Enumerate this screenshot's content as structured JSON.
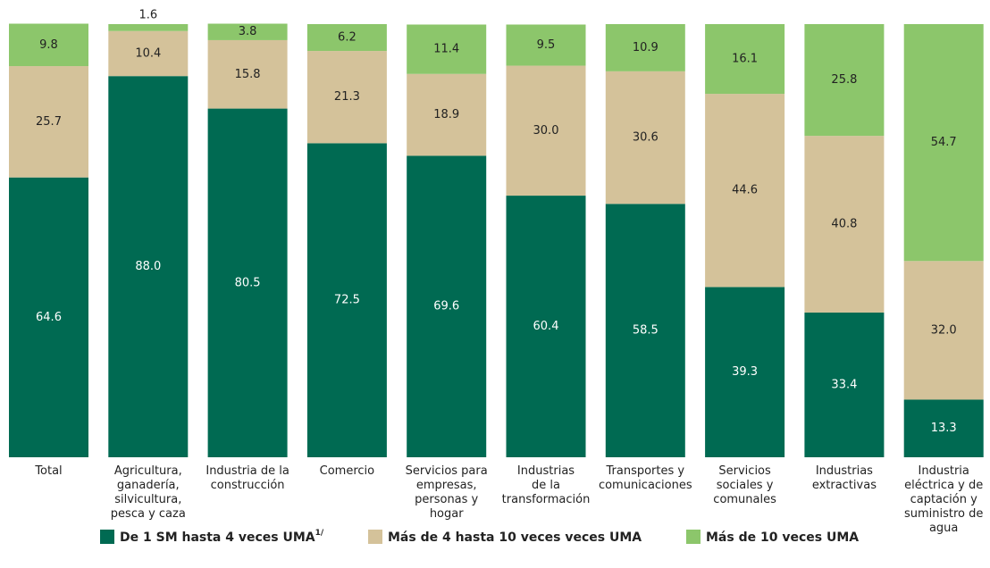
{
  "chart_data": {
    "type": "stacked_bar",
    "categories": [
      "Total",
      "Agricultura,\nganadería,\nsilvicultura,\npesca y caza",
      "Industria de la\nconstrucción",
      "Comercio",
      "Servicios para\nempresas,\npersonas y\nhogar",
      "Industrias\nde la\ntransformación",
      "Transportes y\ncomunicaciones",
      "Servicios\nsociales y\ncomunales",
      "Industrias\nextractivas",
      "Industria\neléctrica y de\ncaptación y\nsuministro de\nagua"
    ],
    "series": [
      {
        "name": "De 1 SM hasta 4 veces UMA",
        "name_note": "1/",
        "color": "#006a52",
        "label_color": "#ffffff",
        "values": [
          64.6,
          88.0,
          80.5,
          72.5,
          69.6,
          60.4,
          58.5,
          39.3,
          33.4,
          13.3
        ]
      },
      {
        "name": "Más de 4 hasta 10 veces veces UMA",
        "color": "#d4c29a",
        "label_color": "#222222",
        "values": [
          25.7,
          10.4,
          15.8,
          21.3,
          18.9,
          30.0,
          30.6,
          44.6,
          40.8,
          32.0
        ]
      },
      {
        "name": "Más de 10 veces UMA",
        "color": "#8cc66b",
        "label_color": "#222222",
        "values": [
          9.8,
          1.6,
          3.8,
          6.2,
          11.4,
          9.5,
          10.9,
          16.1,
          25.8,
          54.7
        ]
      }
    ],
    "value_labels": [
      [
        "64.6",
        "88.0",
        "80.5",
        "72.5",
        "69.6",
        "60.4",
        "58.5",
        "39.3",
        "33.4",
        "13.3"
      ],
      [
        "25.7",
        "10.4",
        "15.8",
        "21.3",
        "18.9",
        "30.0",
        "30.6",
        "44.6",
        "40.8",
        "32.0"
      ],
      [
        "9.8",
        "1.6",
        "3.8",
        "6.2",
        "11.4",
        "9.5",
        "10.9",
        "16.1",
        "25.8",
        "54.7"
      ]
    ],
    "ylim": [
      0,
      100
    ],
    "legend": "bottom"
  }
}
